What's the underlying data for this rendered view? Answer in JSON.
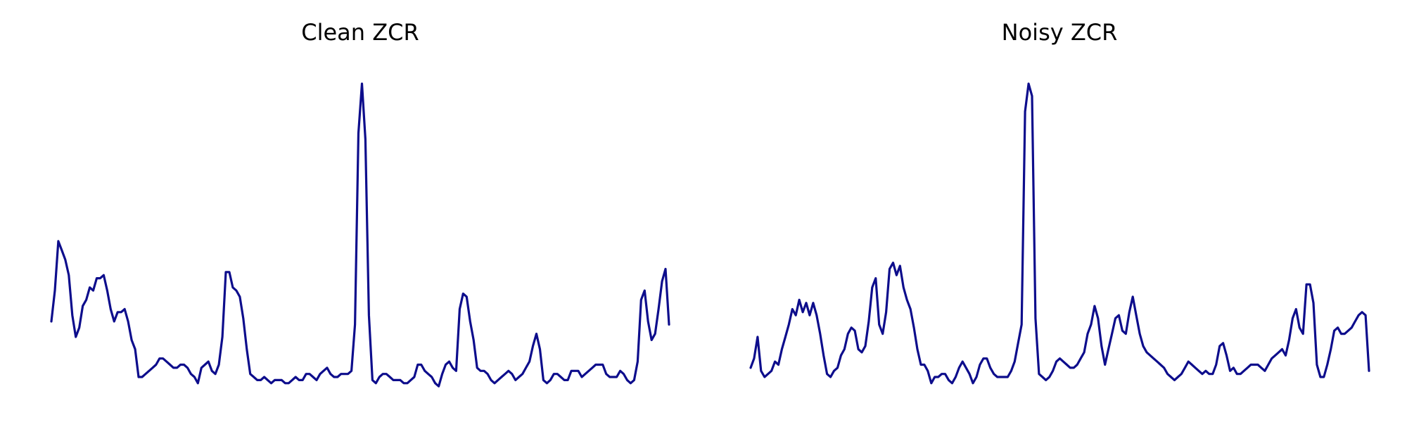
{
  "colors": {
    "line": "#0d0d8c",
    "background": "#ffffff"
  },
  "chart_data": [
    {
      "type": "line",
      "title": "Clean ZCR",
      "axes": "off",
      "grid": false,
      "ylim": [
        0,
        1.05
      ],
      "series": [
        {
          "values": [
            0.23,
            0.33,
            0.49,
            0.46,
            0.43,
            0.38,
            0.25,
            0.18,
            0.21,
            0.28,
            0.3,
            0.34,
            0.33,
            0.37,
            0.37,
            0.38,
            0.33,
            0.27,
            0.23,
            0.26,
            0.26,
            0.27,
            0.23,
            0.17,
            0.14,
            0.05,
            0.05,
            0.06,
            0.07,
            0.08,
            0.09,
            0.11,
            0.11,
            0.1,
            0.09,
            0.08,
            0.08,
            0.09,
            0.09,
            0.08,
            0.06,
            0.05,
            0.03,
            0.08,
            0.09,
            0.1,
            0.07,
            0.06,
            0.09,
            0.18,
            0.39,
            0.39,
            0.34,
            0.33,
            0.31,
            0.24,
            0.14,
            0.06,
            0.05,
            0.04,
            0.04,
            0.05,
            0.04,
            0.03,
            0.04,
            0.04,
            0.04,
            0.03,
            0.03,
            0.04,
            0.05,
            0.04,
            0.04,
            0.06,
            0.06,
            0.05,
            0.04,
            0.06,
            0.07,
            0.08,
            0.06,
            0.05,
            0.05,
            0.06,
            0.06,
            0.06,
            0.07,
            0.22,
            0.84,
            1.0,
            0.82,
            0.25,
            0.04,
            0.03,
            0.05,
            0.06,
            0.06,
            0.05,
            0.04,
            0.04,
            0.04,
            0.03,
            0.03,
            0.04,
            0.05,
            0.09,
            0.09,
            0.07,
            0.06,
            0.05,
            0.03,
            0.02,
            0.06,
            0.09,
            0.1,
            0.08,
            0.07,
            0.27,
            0.32,
            0.31,
            0.23,
            0.17,
            0.08,
            0.07,
            0.07,
            0.06,
            0.04,
            0.03,
            0.04,
            0.05,
            0.06,
            0.07,
            0.06,
            0.04,
            0.05,
            0.06,
            0.08,
            0.1,
            0.15,
            0.19,
            0.14,
            0.04,
            0.03,
            0.04,
            0.06,
            0.06,
            0.05,
            0.04,
            0.04,
            0.07,
            0.07,
            0.07,
            0.05,
            0.06,
            0.07,
            0.08,
            0.09,
            0.09,
            0.09,
            0.06,
            0.05,
            0.05,
            0.05,
            0.07,
            0.06,
            0.04,
            0.03,
            0.04,
            0.1,
            0.3,
            0.33,
            0.23,
            0.17,
            0.19,
            0.27,
            0.36,
            0.4,
            0.22
          ]
        }
      ]
    },
    {
      "type": "line",
      "title": "Noisy ZCR",
      "axes": "off",
      "grid": false,
      "ylim": [
        0,
        1.05
      ],
      "series": [
        {
          "values": [
            0.08,
            0.11,
            0.18,
            0.07,
            0.05,
            0.06,
            0.07,
            0.1,
            0.09,
            0.14,
            0.18,
            0.22,
            0.27,
            0.25,
            0.3,
            0.26,
            0.29,
            0.25,
            0.29,
            0.25,
            0.19,
            0.12,
            0.06,
            0.05,
            0.07,
            0.08,
            0.12,
            0.14,
            0.19,
            0.21,
            0.2,
            0.14,
            0.13,
            0.15,
            0.23,
            0.34,
            0.37,
            0.22,
            0.19,
            0.26,
            0.4,
            0.42,
            0.38,
            0.41,
            0.34,
            0.3,
            0.27,
            0.21,
            0.14,
            0.09,
            0.09,
            0.07,
            0.03,
            0.05,
            0.05,
            0.06,
            0.06,
            0.04,
            0.03,
            0.05,
            0.08,
            0.1,
            0.08,
            0.06,
            0.03,
            0.05,
            0.09,
            0.11,
            0.11,
            0.08,
            0.06,
            0.05,
            0.05,
            0.05,
            0.05,
            0.07,
            0.1,
            0.16,
            0.22,
            0.91,
            1.0,
            0.96,
            0.24,
            0.06,
            0.05,
            0.04,
            0.05,
            0.07,
            0.1,
            0.11,
            0.1,
            0.09,
            0.08,
            0.08,
            0.09,
            0.11,
            0.13,
            0.19,
            0.22,
            0.28,
            0.24,
            0.15,
            0.09,
            0.14,
            0.19,
            0.24,
            0.25,
            0.2,
            0.19,
            0.26,
            0.31,
            0.25,
            0.19,
            0.15,
            0.13,
            0.12,
            0.11,
            0.1,
            0.09,
            0.08,
            0.06,
            0.05,
            0.04,
            0.05,
            0.06,
            0.08,
            0.1,
            0.09,
            0.08,
            0.07,
            0.06,
            0.07,
            0.06,
            0.06,
            0.09,
            0.15,
            0.16,
            0.12,
            0.07,
            0.08,
            0.06,
            0.06,
            0.07,
            0.08,
            0.09,
            0.09,
            0.09,
            0.08,
            0.07,
            0.09,
            0.11,
            0.12,
            0.13,
            0.14,
            0.12,
            0.17,
            0.24,
            0.27,
            0.21,
            0.19,
            0.35,
            0.35,
            0.29,
            0.09,
            0.05,
            0.05,
            0.09,
            0.14,
            0.2,
            0.21,
            0.19,
            0.19,
            0.2,
            0.21,
            0.23,
            0.25,
            0.26,
            0.25,
            0.07
          ]
        }
      ]
    }
  ]
}
